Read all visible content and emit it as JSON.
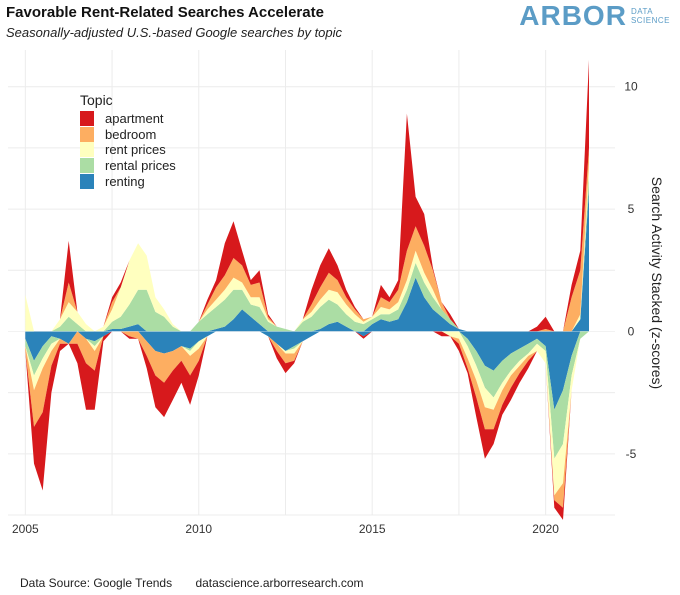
{
  "title": "Favorable Rent-Related Searches Accelerate",
  "subtitle": "Seasonally-adjusted U.S.-based Google searches by topic",
  "logo": {
    "main": "ARBOR",
    "line1": "DATA",
    "line2": "SCIENCE"
  },
  "footer": {
    "source": "Data Source: Google Trends",
    "site": "datascience.arborresearch.com"
  },
  "colors": {
    "apartment": "#d7191c",
    "bedroom": "#fdae61",
    "rent prices": "#ffffbf",
    "rental prices": "#abdda4",
    "renting": "#2b83ba"
  },
  "chart_data": {
    "type": "area",
    "stacked": true,
    "xlabel": "",
    "ylabel": "Search Activity Stacked (z-scores)",
    "xlim": [
      2004.5,
      2022.0
    ],
    "ylim": [
      -7.5,
      11.5
    ],
    "xticks": [
      2005,
      2010,
      2015,
      2020
    ],
    "yticks": [
      -5,
      0,
      5,
      10
    ],
    "legend_title": "Topic",
    "legend_position": "top-left",
    "x": [
      2005.0,
      2005.25,
      2005.5,
      2005.75,
      2006.0,
      2006.25,
      2006.5,
      2006.75,
      2007.0,
      2007.25,
      2007.5,
      2007.75,
      2008.0,
      2008.25,
      2008.5,
      2008.75,
      2009.0,
      2009.25,
      2009.5,
      2009.75,
      2010.0,
      2010.25,
      2010.5,
      2010.75,
      2011.0,
      2011.25,
      2011.5,
      2011.75,
      2012.0,
      2012.25,
      2012.5,
      2012.75,
      2013.0,
      2013.25,
      2013.5,
      2013.75,
      2014.0,
      2014.25,
      2014.5,
      2014.75,
      2015.0,
      2015.25,
      2015.5,
      2015.75,
      2016.0,
      2016.25,
      2016.5,
      2016.75,
      2017.0,
      2017.25,
      2017.5,
      2017.75,
      2018.0,
      2018.25,
      2018.5,
      2018.75,
      2019.0,
      2019.25,
      2019.5,
      2019.75,
      2020.0,
      2020.25,
      2020.5,
      2020.75,
      2021.0,
      2021.25
    ],
    "series": [
      {
        "name": "renting",
        "values": [
          -0.3,
          -1.2,
          -0.6,
          -0.2,
          -0.3,
          -0.5,
          0.0,
          -0.3,
          -0.4,
          -0.2,
          0.1,
          0.1,
          0.2,
          0.3,
          -0.4,
          -0.8,
          -0.9,
          -0.8,
          -0.6,
          -0.7,
          -0.4,
          -0.2,
          0.1,
          0.2,
          0.5,
          0.9,
          0.6,
          0.3,
          -0.2,
          -0.5,
          -0.8,
          -0.6,
          -0.4,
          -0.2,
          0.1,
          0.3,
          0.4,
          0.2,
          0.0,
          -0.2,
          0.3,
          0.5,
          0.4,
          0.5,
          1.2,
          2.2,
          1.4,
          0.9,
          0.6,
          0.3,
          0.1,
          -0.3,
          -0.8,
          -1.4,
          -1.6,
          -1.2,
          -0.9,
          -0.7,
          -0.5,
          -0.3,
          -0.6,
          -3.2,
          -2.4,
          -1.0,
          0.5,
          5.8
        ]
      },
      {
        "name": "rental prices",
        "values": [
          -0.3,
          -0.6,
          -0.5,
          -0.3,
          0.2,
          0.6,
          0.3,
          0.0,
          -0.2,
          0.0,
          0.3,
          0.5,
          0.9,
          1.4,
          1.7,
          0.8,
          0.6,
          0.2,
          0.0,
          -0.1,
          0.4,
          0.7,
          0.9,
          1.1,
          1.2,
          0.8,
          0.5,
          0.7,
          0.4,
          0.2,
          0.1,
          -0.1,
          0.4,
          0.6,
          0.9,
          1.0,
          0.7,
          0.5,
          0.4,
          0.3,
          0.2,
          0.2,
          0.3,
          0.4,
          0.5,
          0.6,
          0.6,
          0.5,
          0.3,
          0.2,
          0.0,
          -0.3,
          -0.6,
          -0.9,
          -1.1,
          -0.9,
          -0.7,
          -0.5,
          -0.4,
          -0.2,
          -0.2,
          -2.0,
          -2.2,
          -0.8,
          -0.3,
          0.6
        ]
      },
      {
        "name": "rent prices",
        "values": [
          1.5,
          -0.6,
          -0.4,
          -0.3,
          0.3,
          0.6,
          0.5,
          0.3,
          -0.2,
          0.2,
          0.5,
          1.2,
          1.8,
          1.9,
          1.4,
          0.6,
          0.3,
          0.1,
          0.0,
          -0.2,
          -0.3,
          0.2,
          0.3,
          0.4,
          0.5,
          0.3,
          0.3,
          0.4,
          0.1,
          0.0,
          -0.1,
          -0.2,
          0.1,
          0.2,
          0.3,
          0.4,
          0.5,
          0.4,
          0.3,
          0.1,
          0.1,
          0.3,
          0.2,
          0.3,
          0.4,
          0.5,
          0.4,
          0.3,
          0.0,
          -0.2,
          -0.3,
          -0.5,
          -0.6,
          -0.8,
          -0.5,
          -0.3,
          -0.2,
          -0.2,
          -0.1,
          -0.3,
          -0.5,
          -1.5,
          -1.6,
          -0.6,
          0.2,
          0.5
        ]
      },
      {
        "name": "bedroom",
        "values": [
          -0.2,
          -1.5,
          -1.8,
          -0.6,
          -0.2,
          0.8,
          -0.5,
          -1.0,
          -0.8,
          0.0,
          0.3,
          0.0,
          -0.2,
          -0.3,
          -0.6,
          -1.0,
          -1.2,
          -0.8,
          -0.6,
          -0.8,
          -0.5,
          0.2,
          0.5,
          0.6,
          0.8,
          0.7,
          0.5,
          0.6,
          0.1,
          -0.3,
          -0.4,
          -0.3,
          0.0,
          0.3,
          0.5,
          0.7,
          0.5,
          0.3,
          0.2,
          0.1,
          0.0,
          0.4,
          0.3,
          0.5,
          1.2,
          1.0,
          1.1,
          0.8,
          0.3,
          0.0,
          -0.2,
          -0.4,
          -0.7,
          -0.9,
          -0.8,
          -0.6,
          -0.5,
          -0.3,
          -0.2,
          0.0,
          0.1,
          -0.2,
          -1.0,
          1.4,
          1.8,
          0.6
        ]
      },
      {
        "name": "apartment",
        "values": [
          0.0,
          -1.5,
          -3.2,
          -1.1,
          -0.3,
          1.7,
          -0.8,
          -1.9,
          -1.6,
          -0.2,
          0.2,
          0.2,
          -0.1,
          0.0,
          -0.5,
          -1.3,
          -1.4,
          -1.2,
          -0.9,
          -1.2,
          -0.6,
          0.2,
          0.3,
          1.3,
          1.5,
          0.6,
          0.2,
          0.5,
          0.1,
          -0.3,
          -0.4,
          -0.1,
          0.0,
          0.6,
          0.9,
          1.0,
          0.6,
          0.3,
          0.1,
          -0.1,
          0.0,
          0.5,
          0.2,
          0.4,
          5.6,
          1.2,
          1.3,
          0.1,
          -0.2,
          0.2,
          -0.3,
          -0.2,
          -0.8,
          -1.2,
          -0.6,
          -0.4,
          -0.5,
          -0.4,
          -0.3,
          0.2,
          0.5,
          -0.3,
          -0.5,
          0.5,
          0.8,
          3.6
        ]
      }
    ]
  }
}
